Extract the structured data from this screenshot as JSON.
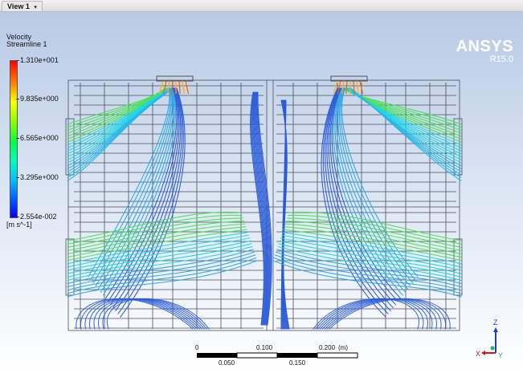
{
  "tab": {
    "label": "View 1",
    "chevron": "▾"
  },
  "legend": {
    "title_line1": "Velocity",
    "title_line2": "Streamline 1",
    "values": [
      "1.310e+001",
      "9.835e+000",
      "6.565e+000",
      "3.295e+000",
      "2.554e-002"
    ],
    "unit": "[m s^-1]"
  },
  "logo": {
    "brand": "ANSYS",
    "version": "R15.0"
  },
  "scale_bar": {
    "top_labels": [
      "0",
      "0.100",
      "0.200",
      "(m)"
    ],
    "bottom_labels": [
      "0.050",
      "0.150"
    ]
  },
  "triad": {
    "z": "Z",
    "x": "X",
    "y": "Y"
  },
  "colors": {
    "wireframe": "#4a4f5a",
    "stream_blue": "#2a5bd7",
    "stream_cyan": "#1fd6e6",
    "stream_green": "#4be05a"
  }
}
